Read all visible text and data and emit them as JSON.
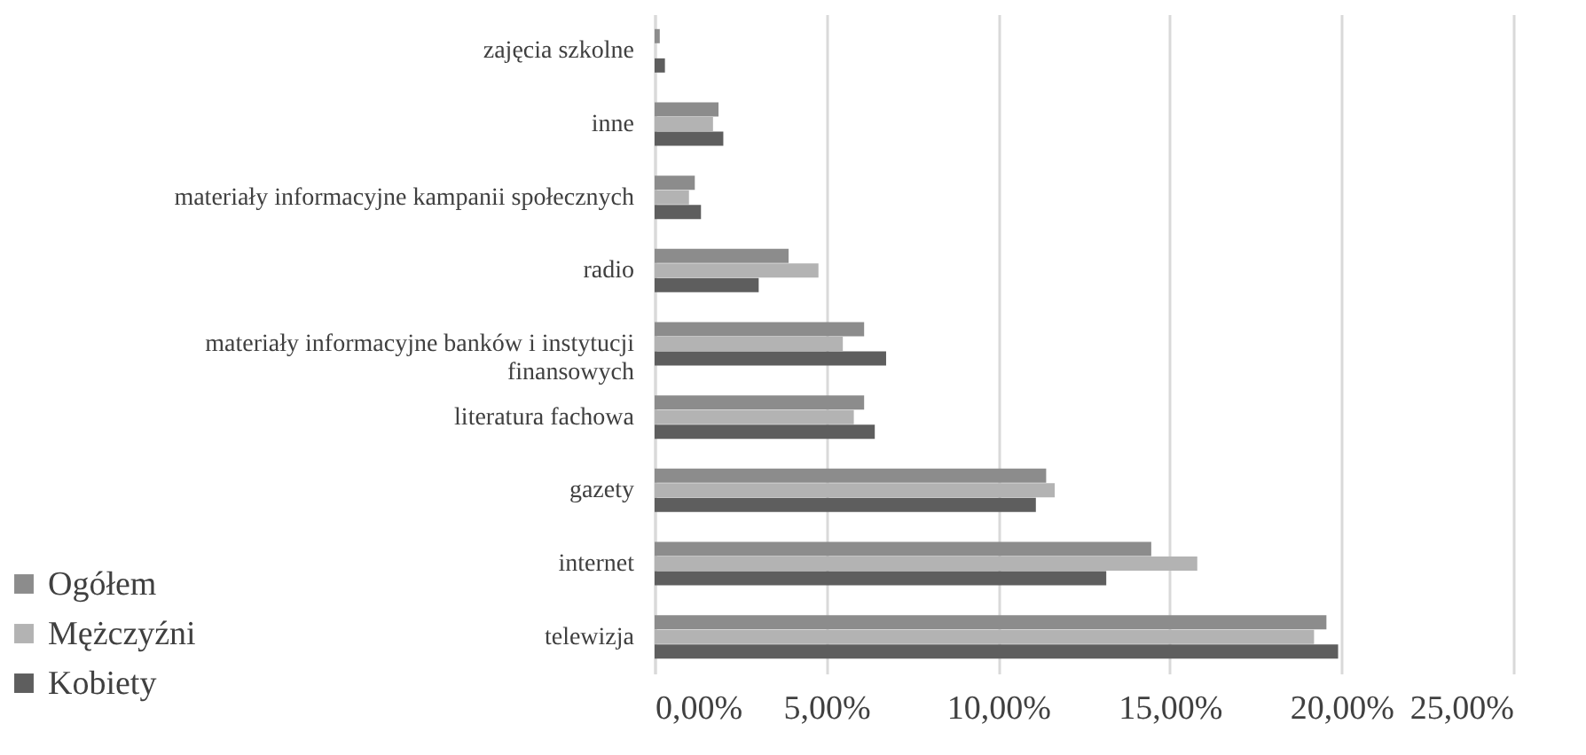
{
  "chart_data": {
    "type": "bar",
    "orientation": "horizontal",
    "categories": [
      "zajęcia szkolne",
      "inne",
      "materiały informacyjne kampanii społecznych",
      "radio",
      "materiały informacyjne banków i instytucji finansowych",
      "literatura fachowa",
      "gazety",
      "internet",
      "telewizja"
    ],
    "series": [
      {
        "name": "Ogółem",
        "color": "#8c8c8c",
        "values": [
          0.15,
          1.86,
          1.17,
          3.9,
          6.1,
          6.1,
          11.4,
          14.46,
          19.56
        ]
      },
      {
        "name": "Mężczyźni",
        "color": "#b3b3b3",
        "values": [
          0,
          1.7,
          1.0,
          4.77,
          5.48,
          5.8,
          11.65,
          15.8,
          19.2
        ]
      },
      {
        "name": "Kobiety",
        "color": "#5e5e5e",
        "values": [
          0.3,
          2.0,
          1.35,
          3.03,
          6.74,
          6.41,
          11.1,
          13.15,
          19.9
        ]
      }
    ],
    "xlim": [
      0,
      25
    ],
    "xticks": [
      {
        "value": 0,
        "label": "0,00%"
      },
      {
        "value": 5,
        "label": "5,00%"
      },
      {
        "value": 10,
        "label": "10,00%"
      },
      {
        "value": 15,
        "label": "15,00%"
      },
      {
        "value": 20,
        "label": "20,00%"
      },
      {
        "value": 25,
        "label": "25,00%"
      }
    ],
    "grid": "x",
    "legend": "bottom left"
  }
}
